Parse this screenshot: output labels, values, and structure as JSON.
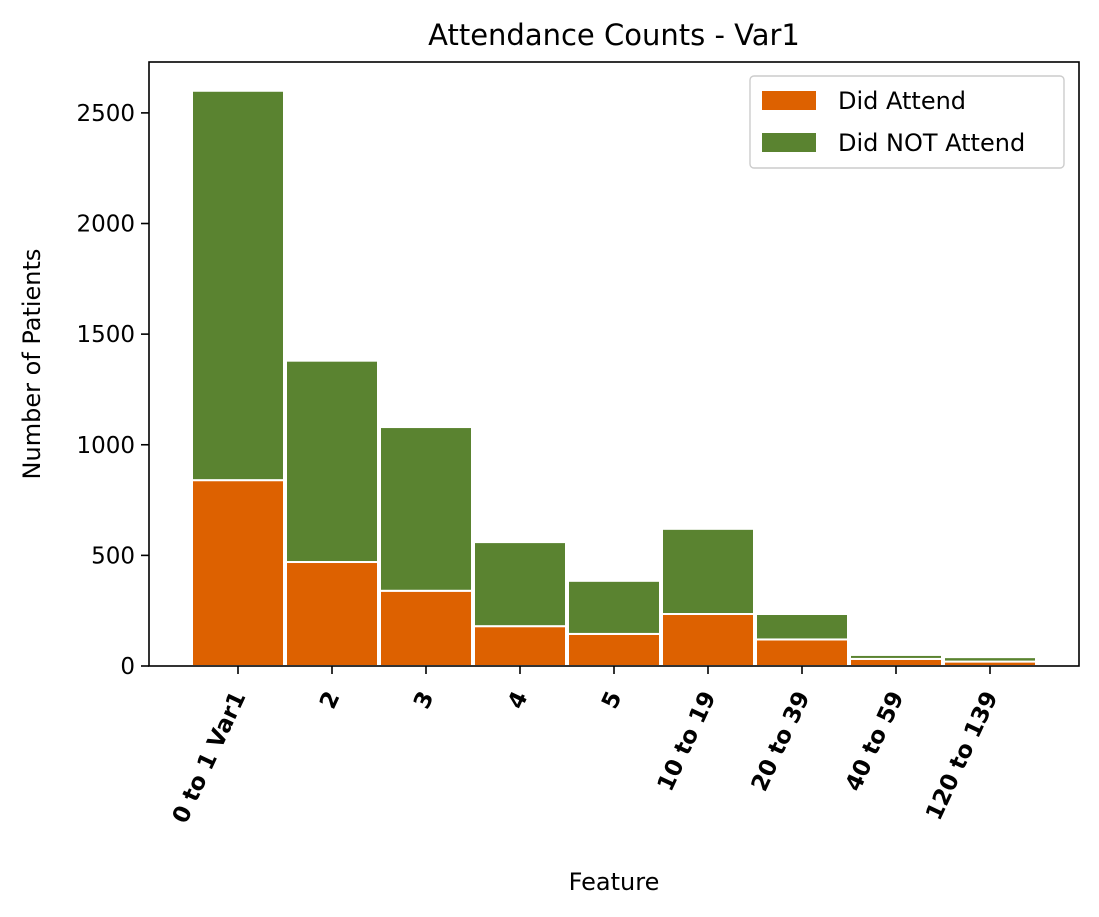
{
  "chart_data": {
    "type": "bar",
    "stacked": true,
    "title": "Attendance Counts - Var1",
    "xlabel": "Feature",
    "ylabel": "Number of Patients",
    "categories": [
      "0 to 1 Var1",
      "2",
      "3",
      "4",
      "5",
      "10 to 19",
      "20 to 39",
      "40 to 59",
      "120 to 139"
    ],
    "series": [
      {
        "name": "Did Attend",
        "color": "#dd6100",
        "values": [
          840,
          470,
          340,
          180,
          145,
          235,
          120,
          32,
          20
        ]
      },
      {
        "name": "Did NOT Attend",
        "color": "#5a8330",
        "values": [
          1760,
          910,
          740,
          380,
          240,
          385,
          115,
          18,
          20
        ]
      }
    ],
    "ylim": [
      0,
      2730
    ],
    "yticks": [
      0,
      500,
      1000,
      1500,
      2000,
      2500
    ],
    "grid": false,
    "legend_position": "top-right"
  }
}
